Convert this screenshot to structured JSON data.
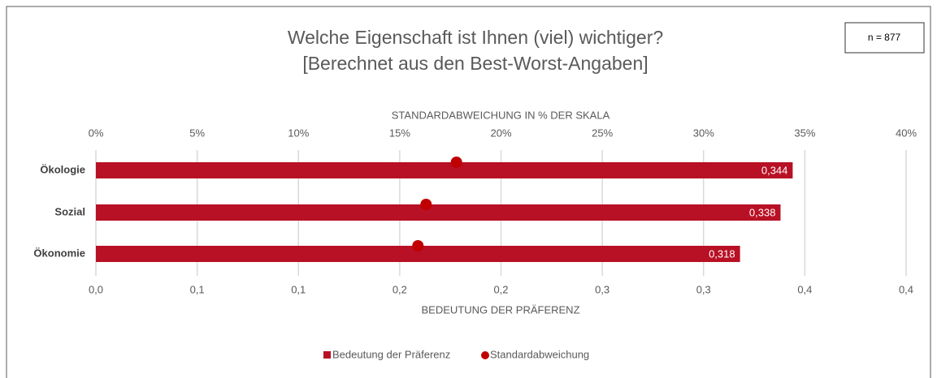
{
  "chart_data": {
    "type": "bar",
    "orientation": "horizontal",
    "title": "Welche Eigenschaft ist Ihnen (viel) wichtiger?",
    "subtitle": "[Berechnet aus den Best-Worst-Angaben]",
    "annotation": "n = 877",
    "xlabel": "BEDEUTUNG DER PRÄFERENZ",
    "x2label": "STANDARDABWEICHUNG IN % DER SKALA",
    "categories": [
      "Ökologie",
      "Sozial",
      "Ökonomie"
    ],
    "xlim": [
      0,
      0.4
    ],
    "xticks": [
      {
        "value": 0,
        "label": "0,0"
      },
      {
        "value": 0.05,
        "label": "0,1"
      },
      {
        "value": 0.1,
        "label": "0,1"
      },
      {
        "value": 0.15,
        "label": "0,2"
      },
      {
        "value": 0.2,
        "label": "0,2"
      },
      {
        "value": 0.25,
        "label": "0,3"
      },
      {
        "value": 0.3,
        "label": "0,3"
      },
      {
        "value": 0.35,
        "label": "0,4"
      },
      {
        "value": 0.4,
        "label": "0,4"
      }
    ],
    "x2lim": [
      0,
      40
    ],
    "x2ticks": [
      {
        "value": 0,
        "label": "0%"
      },
      {
        "value": 5,
        "label": "5%"
      },
      {
        "value": 10,
        "label": "10%"
      },
      {
        "value": 15,
        "label": "15%"
      },
      {
        "value": 20,
        "label": "20%"
      },
      {
        "value": 25,
        "label": "25%"
      },
      {
        "value": 30,
        "label": "30%"
      },
      {
        "value": 35,
        "label": "35%"
      },
      {
        "value": 40,
        "label": "40%"
      }
    ],
    "grid": true,
    "legend": "bottom",
    "series": [
      {
        "name": "Bedeutung der Präferenz",
        "type": "bar",
        "color": "#b81024",
        "values": [
          0.344,
          0.338,
          0.318
        ],
        "value_labels": [
          "0,344",
          "0,338",
          "0,318"
        ]
      },
      {
        "name": "Standardabweichung",
        "type": "scatter",
        "axis": "x2",
        "color": "#c00000",
        "values": [
          17.8,
          16.3,
          15.9
        ]
      }
    ]
  }
}
